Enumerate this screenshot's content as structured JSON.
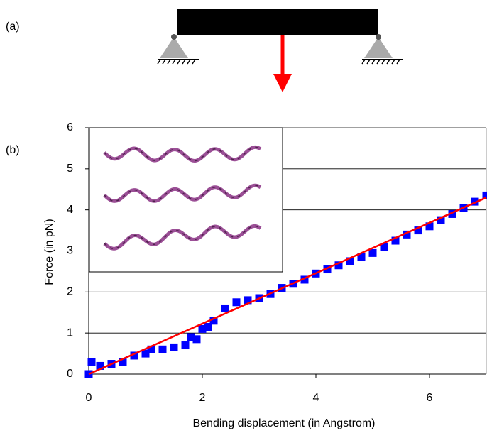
{
  "panel_labels": [
    "(a)",
    "(b)"
  ],
  "chart_data": {
    "type": "scatter",
    "x_label": "Bending displacement (in Angstrom)",
    "y_label": "Force (in pN)",
    "xlim": [
      0,
      7
    ],
    "xticks": [
      0,
      2,
      4,
      6
    ],
    "ylim": [
      0,
      6
    ],
    "yticks": [
      0,
      1,
      2,
      3,
      4,
      5,
      6
    ],
    "grid": true,
    "series": [
      {
        "color": "#0000ff",
        "marker": "square",
        "x": [
          0,
          0.05,
          0.2,
          0.4,
          0.6,
          0.8,
          1.0,
          1.1,
          1.3,
          1.5,
          1.7,
          1.8,
          1.9,
          2.0,
          2.1,
          2.2,
          2.4,
          2.6,
          2.8,
          3.0,
          3.2,
          3.4,
          3.6,
          3.8,
          4.0,
          4.2,
          4.4,
          4.6,
          4.8,
          5.0,
          5.2,
          5.4,
          5.6,
          5.8,
          6.0,
          6.2,
          6.4,
          6.6,
          6.8,
          7.0
        ],
        "values": [
          0,
          0.3,
          0.2,
          0.25,
          0.3,
          0.45,
          0.5,
          0.6,
          0.6,
          0.65,
          0.7,
          0.9,
          0.85,
          1.1,
          1.15,
          1.3,
          1.6,
          1.75,
          1.8,
          1.85,
          1.95,
          2.1,
          2.2,
          2.3,
          2.45,
          2.55,
          2.65,
          2.75,
          2.85,
          2.95,
          3.1,
          3.25,
          3.4,
          3.5,
          3.6,
          3.75,
          3.9,
          4.05,
          4.2,
          4.35
        ]
      },
      {
        "color": "#ff0000",
        "marker": "line",
        "x": [
          0,
          7
        ],
        "values": [
          0,
          4.3
        ]
      }
    ]
  }
}
